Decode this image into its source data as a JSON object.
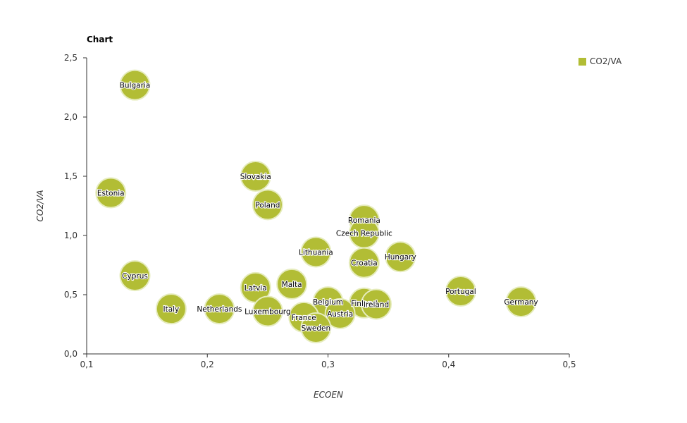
{
  "chart_title": "Chart",
  "colors": {
    "bubble": "#b2bd35",
    "bubble_stroke": "#e6ecbd",
    "axis": "#333333"
  },
  "chart_data": {
    "type": "scatter",
    "title": "Chart",
    "xlabel": "ECOEN",
    "ylabel": "CO2/VA",
    "xlim": [
      0.1,
      0.5
    ],
    "ylim": [
      0.0,
      2.5
    ],
    "xticks": [
      "0,1",
      "0,2",
      "0,3",
      "0,4",
      "0,5"
    ],
    "yticks": [
      "0,0",
      "0,5",
      "1,0",
      "1,5",
      "2,0",
      "2,5"
    ],
    "grid": false,
    "legend_position": "top-right",
    "series": [
      {
        "name": "CO2/VA",
        "points": [
          {
            "label": "Bulgaria",
            "x": 0.14,
            "y": 2.27
          },
          {
            "label": "Estonia",
            "x": 0.12,
            "y": 1.36
          },
          {
            "label": "Slovakia",
            "x": 0.24,
            "y": 1.5
          },
          {
            "label": "Poland",
            "x": 0.25,
            "y": 1.26
          },
          {
            "label": "Romania",
            "x": 0.33,
            "y": 1.13
          },
          {
            "label": "Czech Republic",
            "x": 0.33,
            "y": 1.02
          },
          {
            "label": "Lithuania",
            "x": 0.29,
            "y": 0.86
          },
          {
            "label": "Hungary",
            "x": 0.36,
            "y": 0.82
          },
          {
            "label": "Croatia",
            "x": 0.33,
            "y": 0.77
          },
          {
            "label": "Cyprus",
            "x": 0.14,
            "y": 0.66
          },
          {
            "label": "Malta",
            "x": 0.27,
            "y": 0.59
          },
          {
            "label": "Latvia",
            "x": 0.24,
            "y": 0.56
          },
          {
            "label": "Portugal",
            "x": 0.41,
            "y": 0.53
          },
          {
            "label": "Belgium",
            "x": 0.3,
            "y": 0.44
          },
          {
            "label": "Finland",
            "x": 0.33,
            "y": 0.43
          },
          {
            "label": "Germany",
            "x": 0.46,
            "y": 0.44
          },
          {
            "label": "Ireland",
            "x": 0.34,
            "y": 0.42
          },
          {
            "label": "Italy",
            "x": 0.17,
            "y": 0.38
          },
          {
            "label": "Netherlands",
            "x": 0.21,
            "y": 0.38
          },
          {
            "label": "Luxembourg",
            "x": 0.25,
            "y": 0.36
          },
          {
            "label": "Austria",
            "x": 0.31,
            "y": 0.34
          },
          {
            "label": "France",
            "x": 0.28,
            "y": 0.31
          },
          {
            "label": "Sweden",
            "x": 0.29,
            "y": 0.22
          }
        ]
      }
    ]
  }
}
